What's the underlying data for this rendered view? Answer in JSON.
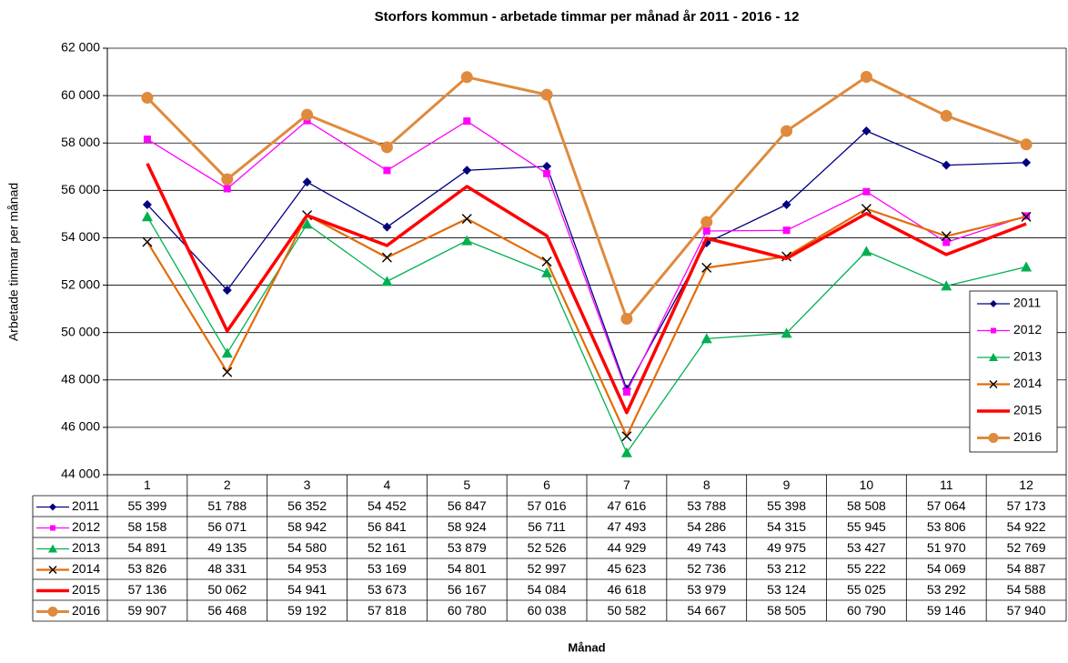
{
  "chart_data": {
    "type": "line",
    "title": "Storfors kommun - arbetade timmar per månad år 2011 - 2016 - 12",
    "y_label": "Arbetade timmar per månad",
    "x_label": "Månad",
    "categories": [
      "1",
      "2",
      "3",
      "4",
      "5",
      "6",
      "7",
      "8",
      "9",
      "10",
      "11",
      "12"
    ],
    "ylim": [
      44000,
      62000
    ],
    "yticks": [
      {
        "value": 44000,
        "label": "44 000"
      },
      {
        "value": 46000,
        "label": "46 000"
      },
      {
        "value": 48000,
        "label": "48 000"
      },
      {
        "value": 50000,
        "label": "50 000"
      },
      {
        "value": 52000,
        "label": "52 000"
      },
      {
        "value": 54000,
        "label": "54 000"
      },
      {
        "value": 56000,
        "label": "56 000"
      },
      {
        "value": 58000,
        "label": "58 000"
      },
      {
        "value": 60000,
        "label": "60 000"
      },
      {
        "value": 62000,
        "label": "62 000"
      }
    ],
    "grid": true,
    "legend": "right",
    "series": [
      {
        "name": "2011",
        "color": "#000080",
        "marker": "diamond",
        "marker_color": "#000080",
        "line_width": 1.3,
        "values": [
          55399,
          51788,
          56352,
          54452,
          56847,
          57016,
          47616,
          53788,
          55398,
          58508,
          57064,
          57173
        ],
        "value_labels": [
          "55 399",
          "51 788",
          "56 352",
          "54 452",
          "56 847",
          "57 016",
          "47 616",
          "53 788",
          "55 398",
          "58 508",
          "57 064",
          "57 173"
        ]
      },
      {
        "name": "2012",
        "color": "#ff00ff",
        "marker": "square",
        "marker_color": "#ff00ff",
        "line_width": 1.3,
        "values": [
          58158,
          56071,
          58942,
          56841,
          58924,
          56711,
          47493,
          54286,
          54315,
          55945,
          53806,
          54922
        ],
        "value_labels": [
          "58 158",
          "56 071",
          "58 942",
          "56 841",
          "58 924",
          "56 711",
          "47 493",
          "54 286",
          "54 315",
          "55 945",
          "53 806",
          "54 922"
        ]
      },
      {
        "name": "2013",
        "color": "#00b050",
        "marker": "triangle",
        "marker_color": "#00b050",
        "line_width": 1.3,
        "values": [
          54891,
          49135,
          54580,
          52161,
          53879,
          52526,
          44929,
          49743,
          49975,
          53427,
          51970,
          52769
        ],
        "value_labels": [
          "54 891",
          "49 135",
          "54 580",
          "52 161",
          "53 879",
          "52 526",
          "44 929",
          "49 743",
          "49 975",
          "53 427",
          "51 970",
          "52 769"
        ]
      },
      {
        "name": "2014",
        "color": "#e36c09",
        "marker": "x",
        "marker_color": "#000000",
        "line_width": 2.2,
        "values": [
          53826,
          48331,
          54953,
          53169,
          54801,
          52997,
          45623,
          52736,
          53212,
          55222,
          54069,
          54887
        ],
        "value_labels": [
          "53 826",
          "48 331",
          "54 953",
          "53 169",
          "54 801",
          "52 997",
          "45 623",
          "52 736",
          "53 212",
          "55 222",
          "54 069",
          "54 887"
        ]
      },
      {
        "name": "2015",
        "color": "#ff0000",
        "marker": "none",
        "marker_color": "#ff0000",
        "line_width": 3.5,
        "values": [
          57136,
          50062,
          54941,
          53673,
          56167,
          54084,
          46618,
          53979,
          53124,
          55025,
          53292,
          54588
        ],
        "value_labels": [
          "57 136",
          "50 062",
          "54 941",
          "53 673",
          "56 167",
          "54 084",
          "46 618",
          "53 979",
          "53 124",
          "55 025",
          "53 292",
          "54 588"
        ]
      },
      {
        "name": "2016",
        "color": "#df8a3c",
        "marker": "circle",
        "marker_color": "#df8a3c",
        "line_width": 3,
        "values": [
          59907,
          56468,
          59192,
          57818,
          60780,
          60038,
          50582,
          54667,
          58505,
          60790,
          59146,
          57940
        ],
        "value_labels": [
          "59 907",
          "56 468",
          "59 192",
          "57 818",
          "60 780",
          "60 038",
          "50 582",
          "54 667",
          "58 505",
          "60 790",
          "59 146",
          "57 940"
        ]
      }
    ]
  }
}
